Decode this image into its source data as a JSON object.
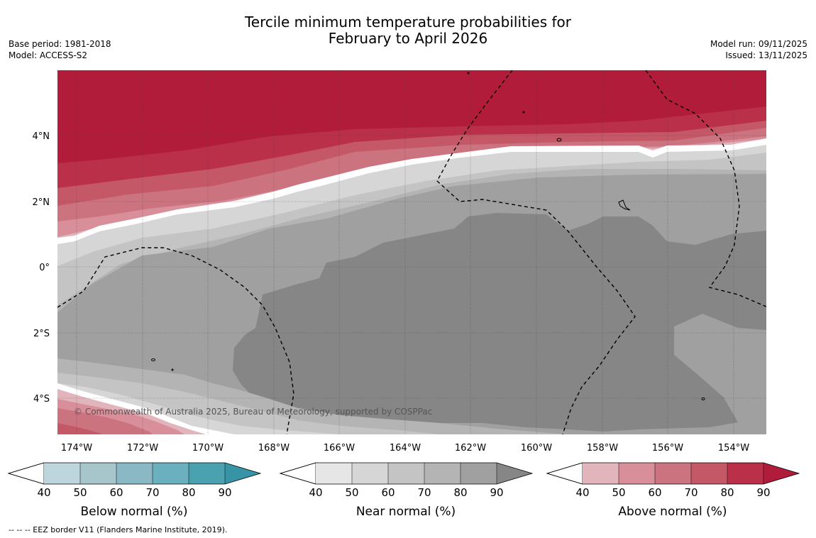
{
  "title": {
    "line1": "Tercile minimum temperature probabilities for",
    "line2": "February to April 2026"
  },
  "meta": {
    "base_period": "Base period: 1981-2018",
    "model": "Model: ACCESS-S2",
    "model_run": "Model run: 09/11/2025",
    "issued": "Issued: 13/11/2025"
  },
  "map": {
    "copyright": "© Commonwealth of Australia 2025, Bureau of Meteorology, supported by COSPPac",
    "lat_labels": [
      "4°N",
      "2°N",
      "0°",
      "2°S",
      "4°S"
    ],
    "lon_labels": [
      "174°W",
      "172°W",
      "170°W",
      "168°W",
      "166°W",
      "164°W",
      "162°W",
      "160°W",
      "158°W",
      "156°W",
      "154°W"
    ]
  },
  "legends": [
    {
      "title": "Below normal (%)",
      "ticks": [
        "40",
        "50",
        "60",
        "70",
        "80",
        "90"
      ],
      "colors": [
        "#bdd5dc",
        "#a6c6cc",
        "#8ab8c4",
        "#6bb0be",
        "#4aa1b0",
        "#3794a6"
      ]
    },
    {
      "title": "Near normal (%)",
      "ticks": [
        "40",
        "50",
        "60",
        "70",
        "80",
        "90"
      ],
      "colors": [
        "#e6e6e6",
        "#d6d6d6",
        "#c4c4c4",
        "#b4b4b4",
        "#a0a0a0",
        "#868686"
      ]
    },
    {
      "title": "Above normal (%)",
      "ticks": [
        "40",
        "50",
        "60",
        "70",
        "80",
        "90"
      ],
      "colors": [
        "#e2b5bd",
        "#d88f9a",
        "#cc7380",
        "#c55867",
        "#b93048",
        "#b01c3a"
      ]
    }
  ],
  "footnote": "--  --  -- EEZ border V11 (Flanders Marine Institute, 2019)."
}
